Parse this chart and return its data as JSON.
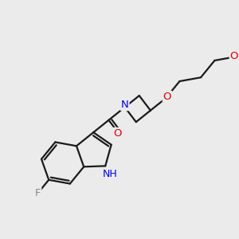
{
  "background_color": "#ebebeb",
  "bond_color": "#1a1a1a",
  "bond_width": 1.6,
  "atom_colors": {
    "N": "#0000ee",
    "O": "#dd0000",
    "F": "#888888",
    "NH": "#0000ee"
  },
  "figsize": [
    3.0,
    3.0
  ],
  "dpi": 100,
  "label_fontsize": 9.5
}
